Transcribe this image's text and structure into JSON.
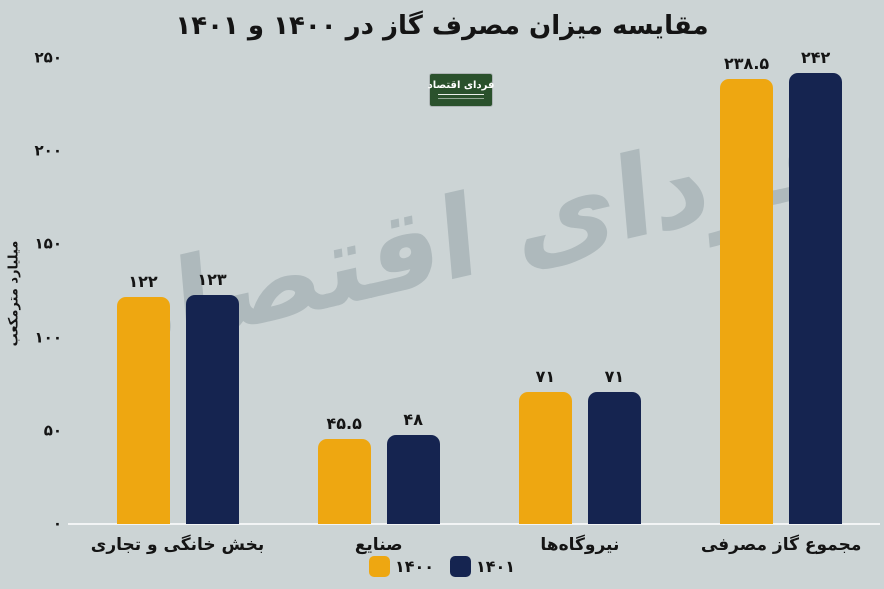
{
  "title": "مقایسه میزان مصرف گاز در ۱۴۰۰ و ۱۴۰۱",
  "watermark": "فردای اقتصاد",
  "logo": {
    "text": "فردای اقتصاد"
  },
  "colors": {
    "background": "#ccd4d5",
    "bar_1400": "#eea711",
    "bar_1401": "#152450",
    "logo_green": "#2a512c",
    "watermark": "#aeb9bc",
    "text": "#141414"
  },
  "y_axis": {
    "label": "میلیارد مترمکعب",
    "ticks": [
      {
        "label": "۲۵۰",
        "value": 250
      },
      {
        "label": "۲۰۰",
        "value": 200
      },
      {
        "label": "۱۵۰",
        "value": 150
      },
      {
        "label": "۱۰۰",
        "value": 100
      },
      {
        "label": "۵۰",
        "value": 50
      },
      {
        "label": "۰",
        "value": 0
      }
    ]
  },
  "chart_data": {
    "type": "bar",
    "title": "مقایسه میزان مصرف گاز در ۱۴۰۰ و ۱۴۰۱",
    "xlabel": "",
    "ylabel": "میلیارد مترمکعب",
    "ylim": [
      0,
      250
    ],
    "grid": false,
    "legend_position": "bottom",
    "categories": [
      "بخش خانگی و تجاری",
      "صنایع",
      "نیروگاه‌ها",
      "مجموع گاز مصرفی"
    ],
    "series": [
      {
        "name": "۱۴۰۰",
        "color": "#eea711",
        "values": [
          122,
          45.5,
          71,
          238.5
        ],
        "labels": [
          "۱۲۲",
          "۴۵.۵",
          "۷۱",
          "۲۳۸.۵"
        ]
      },
      {
        "name": "۱۴۰۱",
        "color": "#152450",
        "values": [
          123,
          48,
          71,
          242
        ],
        "labels": [
          "۱۲۳",
          "۴۸",
          "۷۱",
          "۲۴۲"
        ]
      }
    ]
  }
}
